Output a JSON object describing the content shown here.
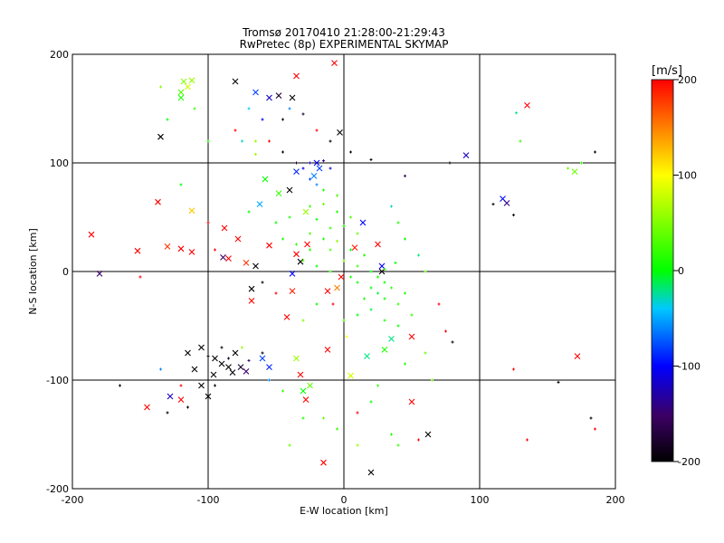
{
  "chart_data": {
    "type": "scatter",
    "title": "Tromsø 20170410 21:28:00-21:29:43",
    "subtitle": "RwPretec (8p) EXPERIMENTAL SKYMAP",
    "xlabel": "E-W location [km]",
    "ylabel": "N-S location [km]",
    "xlim": [
      -200,
      200
    ],
    "ylim": [
      -200,
      200
    ],
    "x_ticks": [
      "-200",
      "-100",
      "0",
      "100",
      "200"
    ],
    "y_ticks": [
      "-200",
      "-100",
      "0",
      "100",
      "200"
    ],
    "grid": true,
    "colorbar": {
      "title": "[m/s]",
      "range": [
        -200,
        200
      ],
      "ticks": [
        "200",
        "100",
        "0",
        "-100",
        "-200"
      ],
      "colormap": [
        "#000000",
        "#3c0064",
        "#0000ff",
        "#00c8ff",
        "#00ff00",
        "#ffff00",
        "#ff0000"
      ]
    },
    "markers_legend": [
      "x",
      "+"
    ],
    "series": [
      {
        "marker": "x",
        "points": [
          [
            -186,
            34,
            200
          ],
          [
            -152,
            19,
            200
          ],
          [
            -137,
            64,
            200
          ],
          [
            -130,
            23,
            180
          ],
          [
            -120,
            21,
            200
          ],
          [
            -112,
            18,
            200
          ],
          [
            -112,
            56,
            120
          ],
          [
            -88,
            40,
            200
          ],
          [
            -89,
            13,
            -150
          ],
          [
            -78,
            30,
            200
          ],
          [
            -72,
            8,
            180
          ],
          [
            -85,
            12,
            200
          ],
          [
            -65,
            5,
            -200
          ],
          [
            -55,
            24,
            200
          ],
          [
            -35,
            16,
            200
          ],
          [
            -32,
            9,
            -200
          ],
          [
            -38,
            -2,
            -100
          ],
          [
            -38,
            -18,
            190
          ],
          [
            -68,
            -16,
            -200
          ],
          [
            -68,
            -27,
            200
          ],
          [
            -42,
            -42,
            200
          ],
          [
            -118,
            175,
            50
          ],
          [
            -120,
            165,
            30
          ],
          [
            -115,
            170,
            80
          ],
          [
            -120,
            160,
            10
          ],
          [
            -112,
            176,
            60
          ],
          [
            -80,
            175,
            -200
          ],
          [
            -65,
            165,
            -80
          ],
          [
            -55,
            160,
            -120
          ],
          [
            -48,
            162,
            -180
          ],
          [
            -38,
            160,
            -200
          ],
          [
            -35,
            180,
            200
          ],
          [
            -7,
            192,
            200
          ],
          [
            -3,
            128,
            -200
          ],
          [
            -135,
            124,
            -200
          ],
          [
            -20,
            100,
            -100
          ],
          [
            -18,
            95,
            -80
          ],
          [
            -22,
            88,
            -60
          ],
          [
            -35,
            92,
            -90
          ],
          [
            -40,
            75,
            -200
          ],
          [
            -28,
            55,
            60
          ],
          [
            -48,
            72,
            20
          ],
          [
            -58,
            85,
            0
          ],
          [
            -62,
            62,
            -50
          ],
          [
            -27,
            25,
            200
          ],
          [
            -5,
            -15,
            150
          ],
          [
            -12,
            -18,
            200
          ],
          [
            28,
            0,
            -200
          ],
          [
            28,
            5,
            -100
          ],
          [
            14,
            45,
            -100
          ],
          [
            8,
            22,
            190
          ],
          [
            25,
            25,
            200
          ],
          [
            90,
            107,
            -120
          ],
          [
            117,
            67,
            -100
          ],
          [
            120,
            63,
            -140
          ],
          [
            135,
            153,
            200
          ],
          [
            170,
            92,
            40
          ],
          [
            -180,
            -2,
            -150
          ],
          [
            -115,
            -75,
            -200
          ],
          [
            -110,
            -90,
            -200
          ],
          [
            -105,
            -105,
            -200
          ],
          [
            -100,
            -115,
            -200
          ],
          [
            -96,
            -95,
            -200
          ],
          [
            -90,
            -85,
            -200
          ],
          [
            -82,
            -93,
            -200
          ],
          [
            -80,
            -75,
            -200
          ],
          [
            -76,
            -88,
            -180
          ],
          [
            -85,
            -88,
            -200
          ],
          [
            -95,
            -80,
            -200
          ],
          [
            -105,
            -70,
            -200
          ],
          [
            -120,
            -118,
            200
          ],
          [
            -128,
            -115,
            -120
          ],
          [
            -145,
            -125,
            200
          ],
          [
            -72,
            -92,
            -150
          ],
          [
            -60,
            -80,
            -80
          ],
          [
            -55,
            -88,
            -90
          ],
          [
            -35,
            -80,
            60
          ],
          [
            -32,
            -95,
            200
          ],
          [
            -28,
            -118,
            200
          ],
          [
            -25,
            -105,
            40
          ],
          [
            -30,
            -110,
            0
          ],
          [
            -12,
            -72,
            200
          ],
          [
            -15,
            -176,
            200
          ],
          [
            5,
            -96,
            80
          ],
          [
            17,
            -78,
            -20
          ],
          [
            30,
            -72,
            10
          ],
          [
            35,
            -62,
            -20
          ],
          [
            50,
            -60,
            200
          ],
          [
            50,
            -120,
            200
          ],
          [
            62,
            -150,
            -200
          ],
          [
            20,
            -185,
            -200
          ],
          [
            172,
            -78,
            200
          ],
          [
            -2,
            -5,
            200
          ]
        ]
      },
      {
        "marker": "+",
        "points": [
          [
            -25,
            60,
            20
          ],
          [
            -15,
            62,
            40
          ],
          [
            -5,
            55,
            10
          ],
          [
            5,
            50,
            30
          ],
          [
            -20,
            48,
            0
          ],
          [
            -10,
            40,
            20
          ],
          [
            0,
            42,
            10
          ],
          [
            10,
            35,
            40
          ],
          [
            -25,
            35,
            30
          ],
          [
            -15,
            30,
            10
          ],
          [
            -5,
            28,
            60
          ],
          [
            5,
            20,
            0
          ],
          [
            15,
            15,
            10
          ],
          [
            -10,
            20,
            30
          ],
          [
            0,
            10,
            50
          ],
          [
            10,
            5,
            20
          ],
          [
            20,
            0,
            0
          ],
          [
            25,
            -5,
            10
          ],
          [
            30,
            -10,
            0
          ],
          [
            35,
            -15,
            20
          ],
          [
            20,
            -15,
            0
          ],
          [
            25,
            -20,
            -10
          ],
          [
            15,
            -25,
            10
          ],
          [
            30,
            -25,
            0
          ],
          [
            40,
            -30,
            20
          ],
          [
            45,
            -20,
            10
          ],
          [
            20,
            -35,
            -10
          ],
          [
            10,
            -40,
            0
          ],
          [
            0,
            -45,
            30
          ],
          [
            30,
            -45,
            10
          ],
          [
            40,
            -50,
            0
          ],
          [
            50,
            -40,
            20
          ],
          [
            -20,
            -30,
            0
          ],
          [
            -30,
            -45,
            50
          ],
          [
            -25,
            20,
            10
          ],
          [
            -30,
            10,
            30
          ],
          [
            -20,
            5,
            0
          ],
          [
            -10,
            0,
            20
          ],
          [
            5,
            -5,
            10
          ],
          [
            10,
            -10,
            0
          ],
          [
            -40,
            50,
            10
          ],
          [
            -50,
            45,
            0
          ],
          [
            -35,
            25,
            20
          ],
          [
            -45,
            30,
            10
          ],
          [
            60,
            0,
            40
          ],
          [
            55,
            15,
            -20
          ],
          [
            45,
            30,
            0
          ],
          [
            40,
            45,
            10
          ],
          [
            35,
            60,
            -30
          ],
          [
            -5,
            70,
            30
          ],
          [
            -15,
            75,
            10
          ],
          [
            -25,
            85,
            -80
          ],
          [
            -30,
            95,
            -100
          ],
          [
            -25,
            100,
            -120
          ],
          [
            -15,
            102,
            -140
          ],
          [
            -10,
            95,
            -120
          ],
          [
            -20,
            80,
            -60
          ],
          [
            -35,
            100,
            -180
          ],
          [
            -45,
            110,
            -200
          ],
          [
            -55,
            120,
            200
          ],
          [
            -60,
            140,
            -100
          ],
          [
            -70,
            150,
            -40
          ],
          [
            -40,
            150,
            -60
          ],
          [
            -45,
            140,
            -200
          ],
          [
            -30,
            145,
            -180
          ],
          [
            -20,
            130,
            200
          ],
          [
            -10,
            120,
            -200
          ],
          [
            5,
            110,
            -200
          ],
          [
            20,
            103,
            -200
          ],
          [
            -80,
            130,
            200
          ],
          [
            -75,
            120,
            -30
          ],
          [
            -100,
            120,
            10
          ],
          [
            -110,
            150,
            20
          ],
          [
            -130,
            140,
            0
          ],
          [
            -65,
            108,
            60
          ],
          [
            45,
            88,
            -150
          ],
          [
            78,
            100,
            -200
          ],
          [
            110,
            62,
            -200
          ],
          [
            125,
            52,
            -200
          ],
          [
            127,
            146,
            -20
          ],
          [
            130,
            120,
            20
          ],
          [
            165,
            95,
            40
          ],
          [
            175,
            100,
            20
          ],
          [
            185,
            110,
            -200
          ],
          [
            -90,
            -70,
            -200
          ],
          [
            -100,
            -78,
            -200
          ],
          [
            -85,
            -80,
            -180
          ],
          [
            -70,
            -82,
            -150
          ],
          [
            -60,
            -75,
            -200
          ],
          [
            -95,
            -105,
            -200
          ],
          [
            -115,
            -125,
            -200
          ],
          [
            -130,
            -130,
            -200
          ],
          [
            -120,
            -105,
            200
          ],
          [
            -75,
            -70,
            60
          ],
          [
            -55,
            -100,
            -60
          ],
          [
            -45,
            -110,
            20
          ],
          [
            -40,
            -160,
            40
          ],
          [
            -30,
            -135,
            10
          ],
          [
            -15,
            -135,
            40
          ],
          [
            -5,
            -145,
            20
          ],
          [
            10,
            -130,
            200
          ],
          [
            20,
            -120,
            0
          ],
          [
            35,
            -150,
            10
          ],
          [
            40,
            -160,
            20
          ],
          [
            55,
            -155,
            200
          ],
          [
            65,
            -100,
            40
          ],
          [
            75,
            -55,
            200
          ],
          [
            80,
            -65,
            -200
          ],
          [
            70,
            -30,
            200
          ],
          [
            125,
            -90,
            200
          ],
          [
            135,
            -155,
            200
          ],
          [
            158,
            -102,
            -200
          ],
          [
            182,
            -135,
            -200
          ],
          [
            185,
            -145,
            200
          ],
          [
            -165,
            -105,
            -200
          ],
          [
            -135,
            -90,
            -60
          ],
          [
            -150,
            -5,
            200
          ],
          [
            -95,
            20,
            200
          ],
          [
            -100,
            45,
            200
          ],
          [
            -70,
            55,
            0
          ],
          [
            -120,
            80,
            0
          ],
          [
            -135,
            170,
            50
          ],
          [
            10,
            -160,
            60
          ],
          [
            25,
            -105,
            20
          ],
          [
            45,
            -85,
            10
          ],
          [
            60,
            -75,
            40
          ],
          [
            30,
            2,
            20
          ],
          [
            38,
            8,
            0
          ],
          [
            -8,
            -30,
            200
          ],
          [
            2,
            -60,
            100
          ],
          [
            -50,
            -20,
            200
          ],
          [
            -60,
            -10,
            -200
          ],
          [
            -65,
            120,
            60
          ]
        ]
      }
    ]
  }
}
